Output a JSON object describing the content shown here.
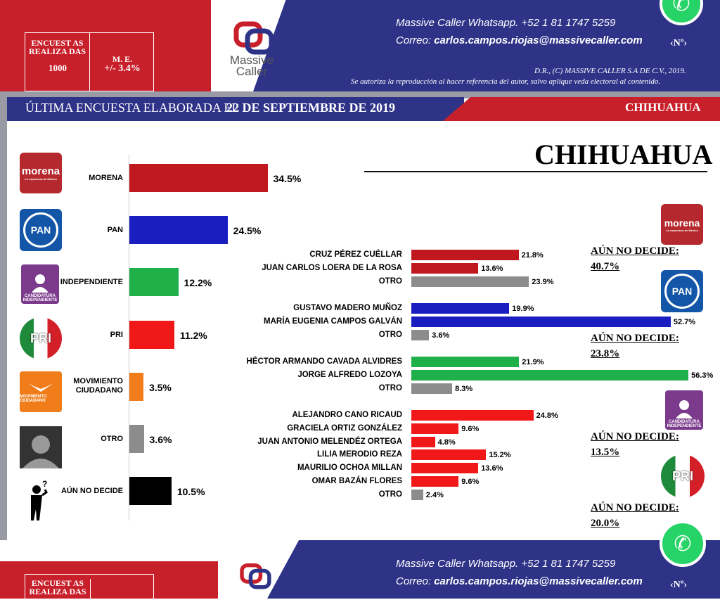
{
  "header": {
    "encuestas_label": "ENCUEST AS REALIZA DAS",
    "encuestas_value": "1000",
    "me_label": "M. E.",
    "me_value": "+/- 3.4%",
    "brand_line1": "Massive",
    "brand_line2": "Caller",
    "whatsapp_label": "Massive Caller Whatsapp.",
    "whatsapp_number": "+52 1 81 1747 5259",
    "correo_label": "Correo:",
    "correo_value": "carlos.campos.riojas@massivecaller.com",
    "numero": "‹Nº›",
    "copyright": "D.R., (C) MASSIVE CALLER S.A DE C.V., 2019.",
    "disclaimer": "Se autoriza la reproducción al hacer referencia del autor, salvo aplique veda electoral al contenido."
  },
  "banner": {
    "left": "ÚLTIMA ENCUESTA ELABORADA EL",
    "date": "22 DE SEPTIEMBRE DE 2019",
    "state": "CHIHUAHUA"
  },
  "logos": {
    "morena": "morena",
    "morena_sub": "La esperanza de México",
    "pan": "PAN",
    "pri": "PRI",
    "ind": "CANDIDATURA INDEPENDIENTE",
    "mc": "MOVIMIENTO CIUDADANO"
  },
  "title": "CHIHUAHUA",
  "chart_data": [
    {
      "type": "bar",
      "orientation": "horizontal",
      "categories": [
        "MORENA",
        "PAN",
        "INDEPENDIENTE",
        "PRI",
        "MOVIMIENTO CIUDADANO",
        "OTRO",
        "AÚN NO DECIDE"
      ],
      "values": [
        34.5,
        24.5,
        12.2,
        11.2,
        3.5,
        3.6,
        10.5
      ],
      "labels": [
        "34.5%",
        "24.5%",
        "12.2%",
        "11.2%",
        "3.5%",
        "3.6%",
        "10.5%"
      ],
      "colors": [
        "#c0181f",
        "#1a1ec0",
        "#1fb04a",
        "#f01818",
        "#f07d1a",
        "#8c8c8c",
        "#000000"
      ]
    },
    {
      "type": "bar",
      "orientation": "horizontal",
      "groups": [
        {
          "party": "MORENA",
          "color": "#c0181f",
          "undecided_label": "AÚN NO DECIDE:",
          "undecided_value": "40.7%",
          "candidates": [
            {
              "name": "CRUZ PÉREZ CUÉLLAR",
              "value": 21.8,
              "label": "21.8%"
            },
            {
              "name": "JUAN CARLOS LOERA DE LA ROSA",
              "value": 13.6,
              "label": "13.6%"
            },
            {
              "name": "OTRO",
              "value": 23.9,
              "label": "23.9%"
            }
          ]
        },
        {
          "party": "PAN",
          "color": "#1a1ec0",
          "undecided_label": "AÚN NO DECIDE:",
          "undecided_value": "23.8%",
          "candidates": [
            {
              "name": "GUSTAVO MADERO MUÑOZ",
              "value": 19.9,
              "label": "19.9%"
            },
            {
              "name": "MARÍA EUGENIA CAMPOS GALVÁN",
              "value": 52.7,
              "label": "52.7%"
            },
            {
              "name": "OTRO",
              "value": 3.6,
              "label": "3.6%"
            }
          ]
        },
        {
          "party": "INDEPENDIENTE",
          "color": "#1fb04a",
          "undecided_label": "AÚN NO DECIDE:",
          "undecided_value": "13.5%",
          "candidates": [
            {
              "name": "HÉCTOR ARMANDO CAVADA ALVIDRES",
              "value": 21.9,
              "label": "21.9%"
            },
            {
              "name": "JORGE ALFREDO LOZOYA",
              "value": 56.3,
              "label": "56.3%"
            },
            {
              "name": "OTRO",
              "value": 8.3,
              "label": "8.3%"
            }
          ]
        },
        {
          "party": "PRI",
          "color": "#f01818",
          "undecided_label": "AÚN NO DECIDE:",
          "undecided_value": "20.0%",
          "candidates": [
            {
              "name": "ALEJANDRO CANO RICAUD",
              "value": 24.8,
              "label": "24.8%"
            },
            {
              "name": "GRACIELA ORTIZ GONZÁLEZ",
              "value": 9.6,
              "label": "9.6%"
            },
            {
              "name": "JUAN ANTONIO MELENDÉZ ORTEGA",
              "value": 4.8,
              "label": "4.8%"
            },
            {
              "name": "LILIA MERODIO REZA",
              "value": 15.2,
              "label": "15.2%"
            },
            {
              "name": "MAURILIO OCHOA MILLAN",
              "value": 13.6,
              "label": "13.6%"
            },
            {
              "name": "OMAR BAZÁN FLORES",
              "value": 9.6,
              "label": "9.6%"
            },
            {
              "name": "OTRO",
              "value": 2.4,
              "label": "2.4%"
            }
          ]
        }
      ]
    }
  ]
}
